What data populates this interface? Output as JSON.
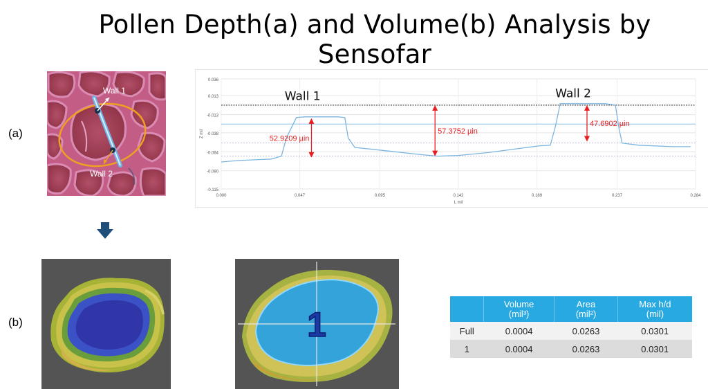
{
  "title": "Pollen Depth(a) and Volume(b) Analysis by Sensofar",
  "sections": {
    "a": "(a)",
    "b": "(b)"
  },
  "pollen_image": {
    "line_labels": [
      "Wall 1",
      "Wall 2"
    ]
  },
  "chart_data": {
    "type": "line",
    "xlabel": "L mil",
    "ylabel": "Z mil",
    "x_ticks": [
      "0.000",
      "0.047",
      "0.095",
      "0.142",
      "0.189",
      "0.237",
      "0.284"
    ],
    "y_ticks": [
      "0.036",
      "0.013",
      "-0.013",
      "-0.038",
      "-0.064",
      "-0.090",
      "-0.115"
    ],
    "xlim": [
      0,
      0.284
    ],
    "ylim": [
      -0.115,
      0.036
    ],
    "series": [
      {
        "x": [
          0,
          0.01,
          0.02,
          0.03,
          0.033,
          0.036,
          0.039,
          0.045,
          0.05,
          0.06,
          0.07,
          0.074,
          0.076,
          0.08,
          0.1,
          0.12,
          0.13,
          0.142,
          0.16,
          0.18,
          0.19,
          0.197,
          0.2,
          0.203,
          0.21,
          0.22,
          0.23,
          0.236,
          0.238,
          0.24,
          0.25,
          0.27,
          0.281
        ],
        "y": [
          -0.078,
          -0.076,
          -0.075,
          -0.074,
          -0.072,
          -0.07,
          -0.045,
          -0.017,
          -0.016,
          -0.016,
          -0.016,
          -0.017,
          -0.045,
          -0.058,
          -0.063,
          -0.068,
          -0.07,
          -0.069,
          -0.065,
          -0.059,
          -0.056,
          -0.055,
          -0.03,
          0.002,
          0.002,
          0.002,
          0.002,
          0.0,
          -0.03,
          -0.052,
          -0.055,
          -0.057,
          -0.057
        ]
      }
    ],
    "reference_lines": [
      0.0,
      -0.026,
      -0.052,
      -0.07
    ],
    "annotations": [
      {
        "text": "Wall 1"
      },
      {
        "text": "Wall 2"
      },
      {
        "text": "52.9209 µin",
        "x": 0.054,
        "from": -0.018,
        "to": -0.072
      },
      {
        "text": "57.3752 µin",
        "x": 0.128,
        "from": 0.0,
        "to": -0.07
      },
      {
        "text": "47.6902 µin",
        "x": 0.219,
        "from": 0.0,
        "to": -0.05
      }
    ],
    "colors": {
      "profile": "#7cb5e0",
      "arrow": "#e81e1e",
      "annotation_text": "#e81e1e",
      "zero_line": "#000000"
    }
  },
  "segmentation": {
    "region_label": "1"
  },
  "results_table": {
    "headers": [
      [
        "",
        ""
      ],
      [
        "Volume",
        "(mil³)"
      ],
      [
        "Area",
        "(mil²)"
      ],
      [
        "Max h/d",
        "(mil)"
      ]
    ],
    "rows": [
      [
        "Full",
        "0.0004",
        "0.0263",
        "0.0301"
      ],
      [
        "1",
        "0.0004",
        "0.0263",
        "0.0301"
      ]
    ],
    "colors": {
      "header": "#29a9e1"
    }
  }
}
